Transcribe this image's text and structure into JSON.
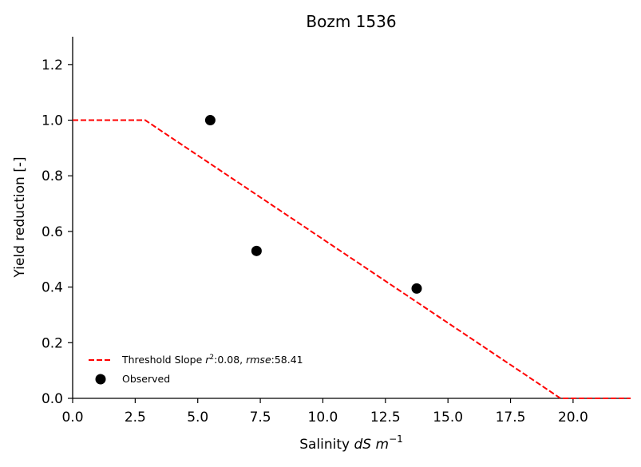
{
  "chart_data": {
    "type": "scatter",
    "title": "Bozm 1536",
    "xlabel": "Salinity dS m⁻¹",
    "xlabel_parts": {
      "prefix": "Salinity ",
      "var1": "dS",
      "var2": "m",
      "sup": "−1"
    },
    "ylabel": "Yield reduction [-]",
    "xlim": [
      0,
      22.3
    ],
    "ylim": [
      0,
      1.3
    ],
    "xticks": [
      0,
      2.5,
      5,
      7.5,
      10,
      12.5,
      15,
      17.5,
      20
    ],
    "xtick_labels": [
      "0.0",
      "2.5",
      "5.0",
      "7.5",
      "10.0",
      "12.5",
      "15.0",
      "17.5",
      "20.0"
    ],
    "yticks": [
      0,
      0.2,
      0.4,
      0.6,
      0.8,
      1.0,
      1.2
    ],
    "ytick_labels": [
      "0.0",
      "0.2",
      "0.4",
      "0.6",
      "0.8",
      "1.0",
      "1.2"
    ],
    "grid": false,
    "legend_position": "lower-left",
    "series": [
      {
        "name": "Threshold Slope r²:0.08, rmse:58.41",
        "kind": "line",
        "style": "dashed",
        "color": "#ff0000",
        "x": [
          0,
          2.9,
          19.5,
          22.3
        ],
        "y": [
          1.0,
          1.0,
          0.0,
          0.0
        ]
      },
      {
        "name": "Observed",
        "kind": "scatter",
        "color": "#000000",
        "x": [
          5.5,
          7.35,
          13.75
        ],
        "y": [
          1.0,
          0.53,
          0.395
        ]
      }
    ],
    "legend": {
      "line_label": {
        "prefix": "Threshold Slope ",
        "r": "r",
        "r2_sup": "2",
        "r2_value": ":0.08, ",
        "rmse": "rmse",
        "rmse_value": ":58.41"
      },
      "scatter_label": "Observed"
    }
  }
}
